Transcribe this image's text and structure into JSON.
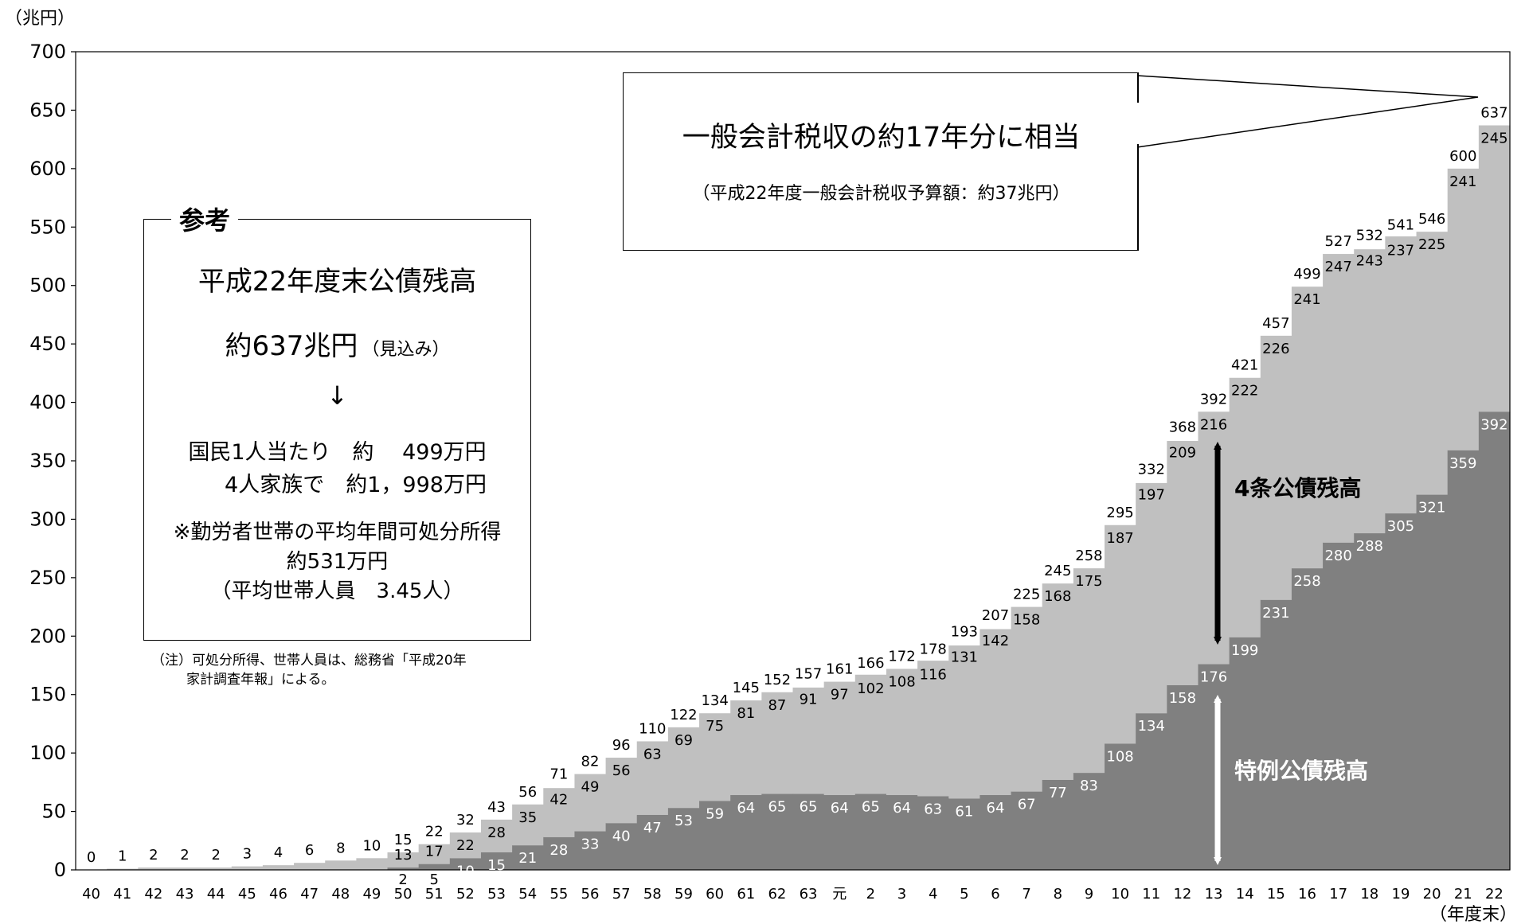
{
  "chart_data": {
    "type": "bar",
    "stacked": true,
    "y_unit": "（兆円）",
    "x_unit": "（年度末）",
    "ylim": [
      0,
      700
    ],
    "yticks": [
      0,
      50,
      100,
      150,
      200,
      250,
      300,
      350,
      400,
      450,
      500,
      550,
      600,
      650,
      700
    ],
    "categories": [
      "40",
      "41",
      "42",
      "43",
      "44",
      "45",
      "46",
      "47",
      "48",
      "49",
      "50",
      "51",
      "52",
      "53",
      "54",
      "55",
      "56",
      "57",
      "58",
      "59",
      "60",
      "61",
      "62",
      "63",
      "元",
      "2",
      "3",
      "4",
      "5",
      "6",
      "7",
      "8",
      "9",
      "10",
      "11",
      "12",
      "13",
      "14",
      "15",
      "16",
      "17",
      "18",
      "19",
      "20",
      "21",
      "22"
    ],
    "series": [
      {
        "name": "特例公債残高",
        "color": "#808080",
        "values": [
          0,
          0,
          0,
          0,
          0,
          0,
          0,
          0,
          0,
          0,
          2,
          5,
          10,
          15,
          21,
          28,
          33,
          40,
          47,
          53,
          59,
          64,
          65,
          65,
          64,
          65,
          64,
          63,
          61,
          64,
          67,
          77,
          83,
          108,
          134,
          158,
          176,
          199,
          231,
          258,
          280,
          288,
          305,
          321,
          359,
          392
        ]
      },
      {
        "name": "4条公債残高",
        "color": "#c0c0c0",
        "values": [
          0,
          1,
          2,
          2,
          2,
          3,
          4,
          6,
          8,
          10,
          13,
          17,
          22,
          28,
          35,
          42,
          49,
          56,
          63,
          69,
          75,
          81,
          87,
          91,
          97,
          102,
          108,
          116,
          131,
          142,
          158,
          168,
          175,
          187,
          197,
          209,
          216,
          222,
          226,
          241,
          247,
          243,
          237,
          225,
          241,
          245
        ]
      }
    ],
    "totals": [
      0,
      1,
      2,
      2,
      2,
      3,
      4,
      6,
      8,
      10,
      15,
      22,
      32,
      43,
      56,
      71,
      82,
      96,
      110,
      122,
      134,
      145,
      152,
      157,
      161,
      166,
      172,
      178,
      193,
      207,
      225,
      245,
      258,
      295,
      332,
      368,
      392,
      421,
      457,
      499,
      527,
      532,
      541,
      546,
      600,
      637
    ]
  },
  "callout": {
    "title": "一般会計税収の約17年分に相当",
    "sub": "（平成22年度一般会計税収予算額：約37兆円）"
  },
  "reference": {
    "heading": "参考",
    "line1": "平成22年度末公債残高",
    "line2_main": "約637兆円",
    "line2_note": "（見込み）",
    "arrow": "↓",
    "per_person": "国民1人当たり　約　 499万円",
    "per_family": "4人家族で　約1，998万円",
    "note1": "※勤労者世帯の平均年間可処分所得",
    "note2": "約531万円",
    "note3": "（平均世帯人員　3.45人）"
  },
  "footnote": {
    "line1": "（注）可処分所得、世帯人員は、総務省「平成20年",
    "line2": "家計調査年報」による。"
  },
  "annotations": {
    "upper": "4条公債残高",
    "lower": "特例公債残高"
  }
}
